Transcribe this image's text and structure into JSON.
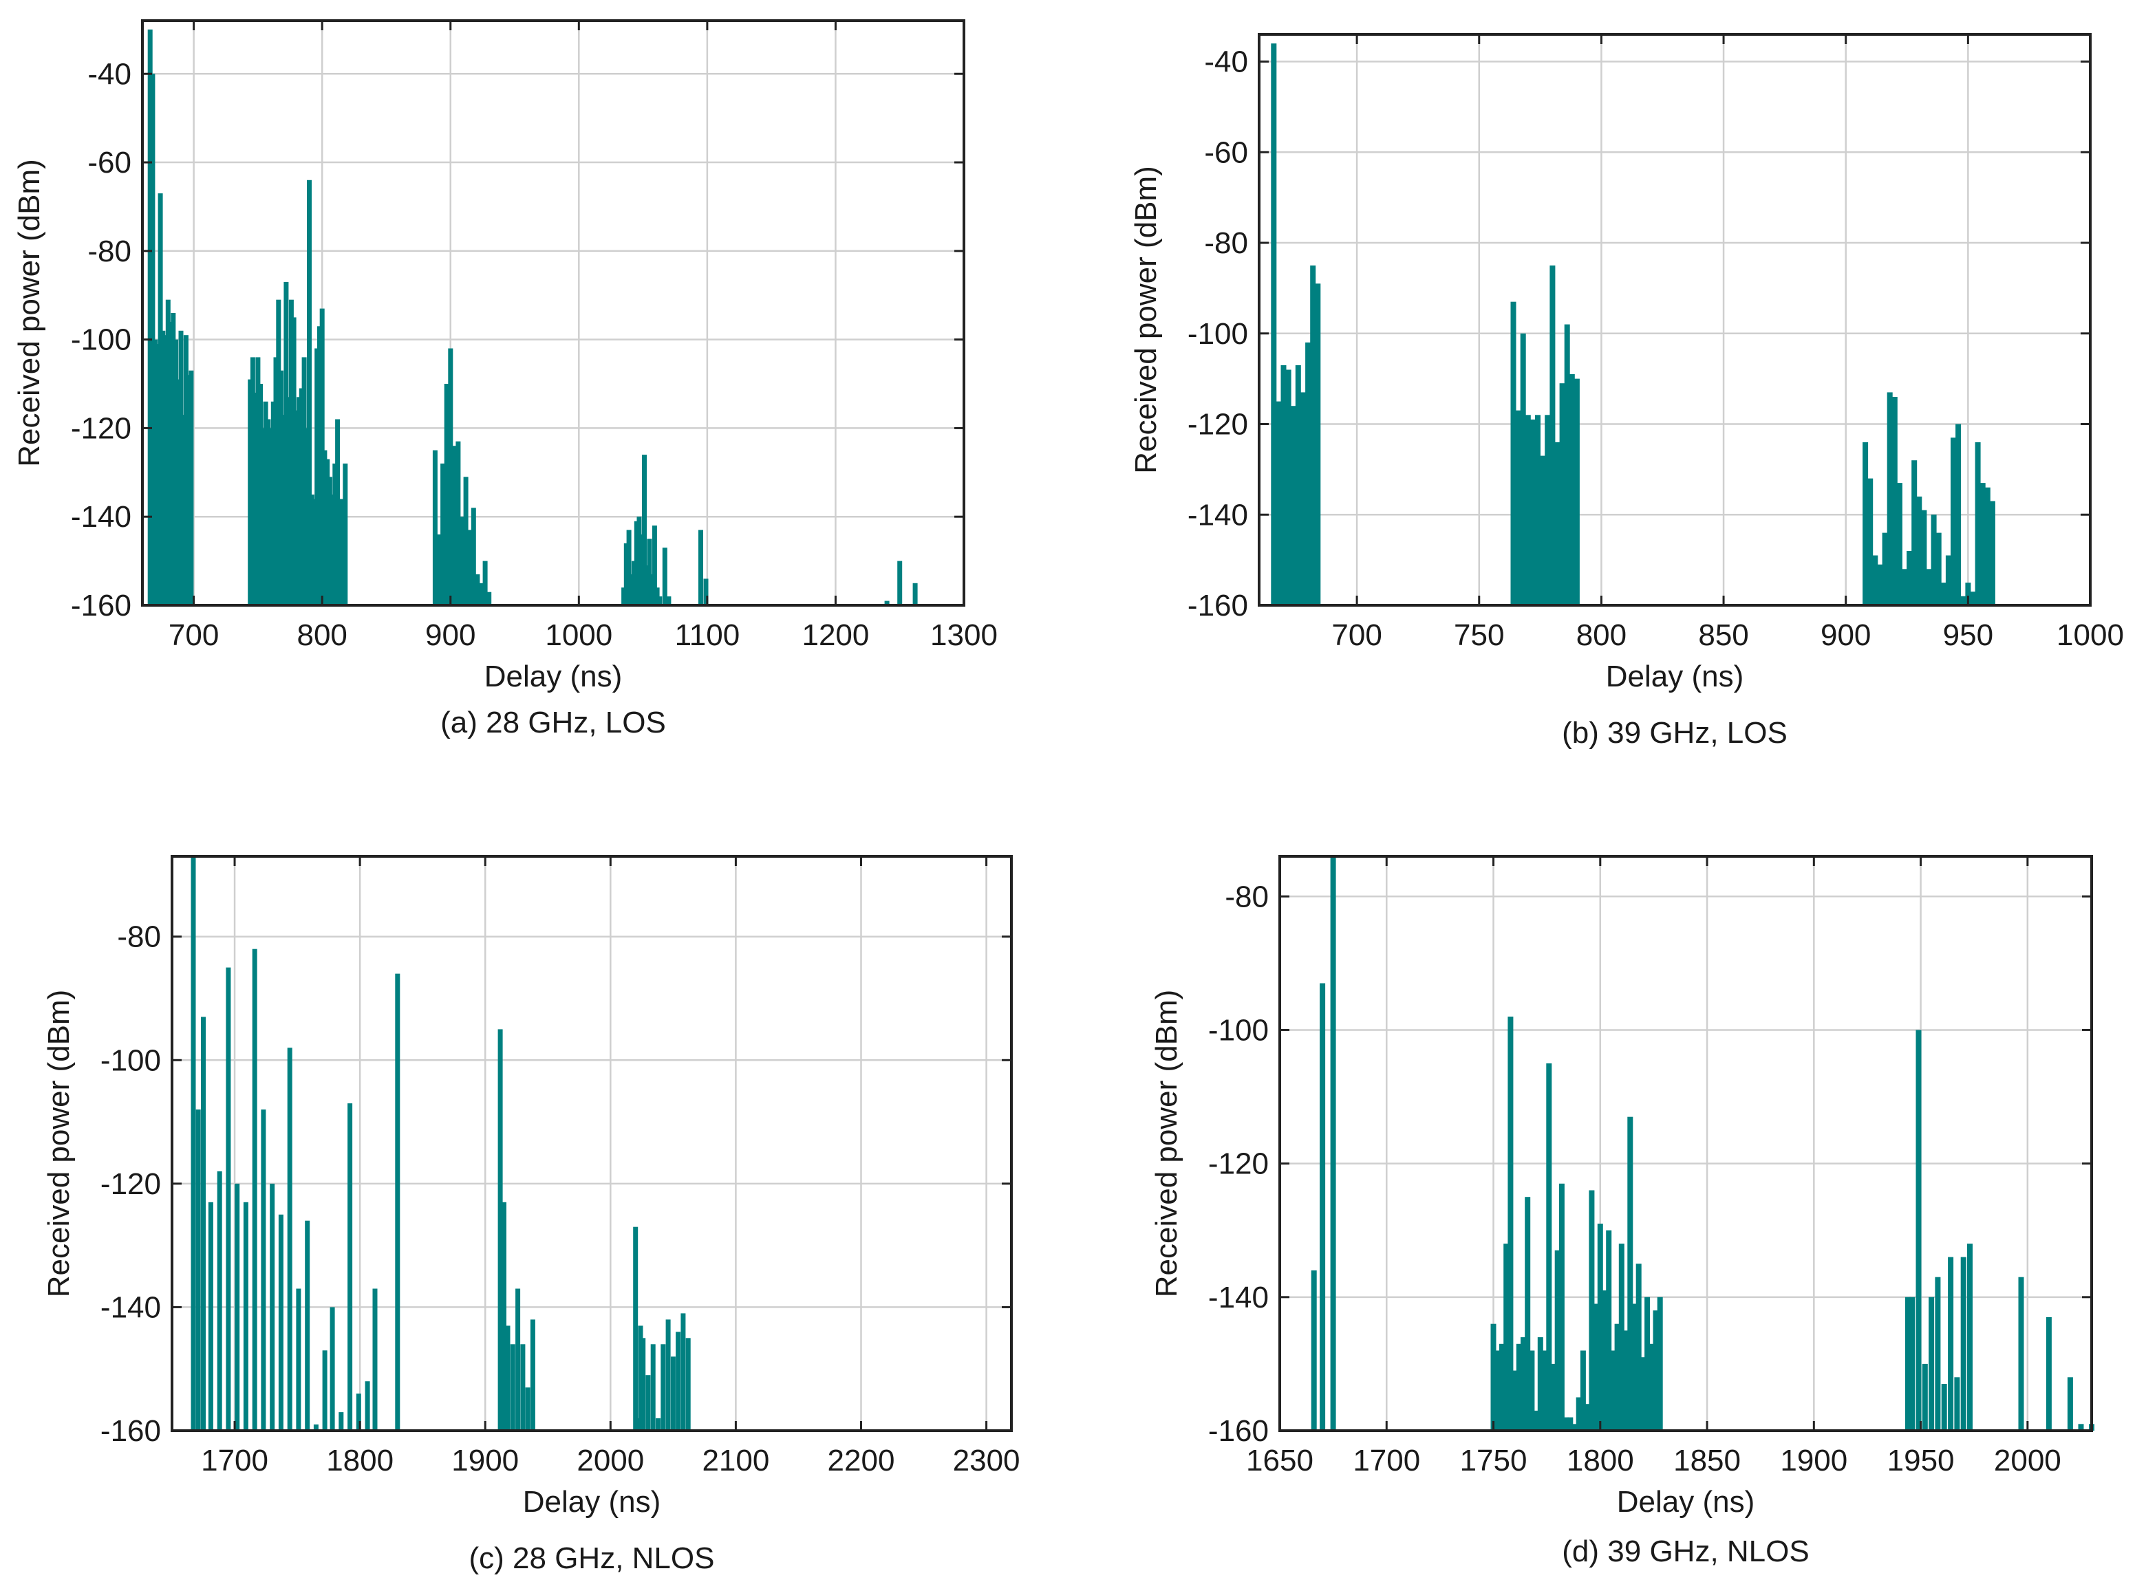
{
  "accent": "#008080",
  "chart_data": [
    {
      "type": "bar",
      "caption": "(a) 28 GHz, LOS",
      "xlabel": "Delay (ns)",
      "ylabel": "Received power (dBm)",
      "xlim": [
        660,
        1300
      ],
      "ylim": [
        -160,
        -28
      ],
      "xticks": [
        700,
        800,
        900,
        1000,
        1100,
        1200,
        1300
      ],
      "yticks": [
        -160,
        -140,
        -120,
        -100,
        -80,
        -60,
        -40
      ],
      "grid": true,
      "bars": [
        [
          666,
          -30
        ],
        [
          668,
          -40
        ],
        [
          670,
          -100
        ],
        [
          672,
          -101
        ],
        [
          674,
          -67
        ],
        [
          676,
          -98
        ],
        [
          678,
          -99
        ],
        [
          680,
          -91
        ],
        [
          682,
          -96
        ],
        [
          684,
          -94
        ],
        [
          686,
          -100
        ],
        [
          688,
          -109
        ],
        [
          690,
          -98
        ],
        [
          692,
          -117
        ],
        [
          694,
          -99
        ],
        [
          696,
          -108
        ],
        [
          698,
          -107
        ],
        [
          744,
          -109
        ],
        [
          746,
          -104
        ],
        [
          748,
          -112
        ],
        [
          750,
          -104
        ],
        [
          752,
          -110
        ],
        [
          754,
          -120
        ],
        [
          756,
          -114
        ],
        [
          758,
          -118
        ],
        [
          760,
          -120
        ],
        [
          762,
          -114
        ],
        [
          764,
          -104
        ],
        [
          766,
          -91
        ],
        [
          768,
          -107
        ],
        [
          770,
          -117
        ],
        [
          772,
          -87
        ],
        [
          774,
          -113
        ],
        [
          776,
          -91
        ],
        [
          778,
          -95
        ],
        [
          780,
          -116
        ],
        [
          782,
          -113
        ],
        [
          784,
          -111
        ],
        [
          786,
          -104
        ],
        [
          788,
          -120
        ],
        [
          790,
          -64
        ],
        [
          792,
          -135
        ],
        [
          794,
          -136
        ],
        [
          796,
          -102
        ],
        [
          798,
          -97
        ],
        [
          800,
          -93
        ],
        [
          802,
          -125
        ],
        [
          804,
          -127
        ],
        [
          806,
          -131
        ],
        [
          808,
          -135
        ],
        [
          810,
          -128
        ],
        [
          812,
          -118
        ],
        [
          814,
          -136
        ],
        [
          816,
          -136
        ],
        [
          818,
          -128
        ],
        [
          888,
          -125
        ],
        [
          891,
          -144
        ],
        [
          894,
          -128
        ],
        [
          897,
          -110
        ],
        [
          900,
          -102
        ],
        [
          903,
          -124
        ],
        [
          906,
          -123
        ],
        [
          909,
          -140
        ],
        [
          912,
          -131
        ],
        [
          915,
          -143
        ],
        [
          918,
          -138
        ],
        [
          921,
          -153
        ],
        [
          924,
          -155
        ],
        [
          927,
          -150
        ],
        [
          930,
          -157
        ],
        [
          1035,
          -156
        ],
        [
          1037,
          -146
        ],
        [
          1039,
          -143
        ],
        [
          1041,
          -153
        ],
        [
          1043,
          -150
        ],
        [
          1045,
          -141
        ],
        [
          1047,
          -140
        ],
        [
          1049,
          -144
        ],
        [
          1051,
          -126
        ],
        [
          1053,
          -151
        ],
        [
          1055,
          -145
        ],
        [
          1057,
          -153
        ],
        [
          1059,
          -142
        ],
        [
          1061,
          -156
        ],
        [
          1063,
          -158
        ],
        [
          1067,
          -147
        ],
        [
          1070,
          -158
        ],
        [
          1095,
          -143
        ],
        [
          1099,
          -154
        ],
        [
          1240,
          -159
        ],
        [
          1250,
          -150
        ],
        [
          1262,
          -155
        ]
      ]
    },
    {
      "type": "bar",
      "caption": "(b) 39 GHz, LOS",
      "xlabel": "Delay (ns)",
      "ylabel": "Received power (dBm)",
      "xlim": [
        660,
        1000
      ],
      "ylim": [
        -160,
        -34
      ],
      "xticks": [
        700,
        750,
        800,
        850,
        900,
        950,
        1000
      ],
      "yticks": [
        -160,
        -140,
        -120,
        -100,
        -80,
        -60,
        -40
      ],
      "grid": true,
      "bars": [
        [
          666,
          -36
        ],
        [
          668,
          -115
        ],
        [
          670,
          -107
        ],
        [
          672,
          -108
        ],
        [
          674,
          -116
        ],
        [
          676,
          -107
        ],
        [
          678,
          -113
        ],
        [
          680,
          -102
        ],
        [
          682,
          -85
        ],
        [
          684,
          -89
        ],
        [
          764,
          -93
        ],
        [
          766,
          -117
        ],
        [
          768,
          -100
        ],
        [
          770,
          -118
        ],
        [
          772,
          -119
        ],
        [
          774,
          -118
        ],
        [
          776,
          -127
        ],
        [
          778,
          -118
        ],
        [
          780,
          -85
        ],
        [
          782,
          -124
        ],
        [
          784,
          -111
        ],
        [
          786,
          -98
        ],
        [
          788,
          -109
        ],
        [
          790,
          -110
        ],
        [
          908,
          -124
        ],
        [
          910,
          -132
        ],
        [
          912,
          -149
        ],
        [
          914,
          -151
        ],
        [
          916,
          -144
        ],
        [
          918,
          -113
        ],
        [
          920,
          -114
        ],
        [
          922,
          -133
        ],
        [
          924,
          -152
        ],
        [
          926,
          -148
        ],
        [
          928,
          -128
        ],
        [
          930,
          -136
        ],
        [
          932,
          -139
        ],
        [
          934,
          -152
        ],
        [
          936,
          -140
        ],
        [
          938,
          -144
        ],
        [
          940,
          -155
        ],
        [
          942,
          -149
        ],
        [
          944,
          -123
        ],
        [
          946,
          -120
        ],
        [
          948,
          -158
        ],
        [
          950,
          -155
        ],
        [
          952,
          -157
        ],
        [
          954,
          -124
        ],
        [
          956,
          -133
        ],
        [
          958,
          -134
        ],
        [
          960,
          -137
        ]
      ]
    },
    {
      "type": "bar",
      "caption": "(c) 28 GHz, NLOS",
      "xlabel": "Delay (ns)",
      "ylabel": "Received power (dBm)",
      "xlim": [
        1650,
        2320
      ],
      "ylim": [
        -160,
        -67
      ],
      "xticks": [
        1700,
        1800,
        1900,
        2000,
        2100,
        2200,
        2300
      ],
      "yticks": [
        -160,
        -140,
        -120,
        -100,
        -80
      ],
      "grid": true,
      "bars": [
        [
          1667,
          -67
        ],
        [
          1671,
          -108
        ],
        [
          1675,
          -93
        ],
        [
          1681,
          -123
        ],
        [
          1688,
          -118
        ],
        [
          1695,
          -85
        ],
        [
          1702,
          -120
        ],
        [
          1709,
          -123
        ],
        [
          1716,
          -82
        ],
        [
          1723,
          -108
        ],
        [
          1730,
          -120
        ],
        [
          1737,
          -125
        ],
        [
          1744,
          -98
        ],
        [
          1751,
          -137
        ],
        [
          1758,
          -126
        ],
        [
          1765,
          -159
        ],
        [
          1772,
          -147
        ],
        [
          1778,
          -140
        ],
        [
          1785,
          -157
        ],
        [
          1792,
          -107
        ],
        [
          1799,
          -154
        ],
        [
          1806,
          -152
        ],
        [
          1812,
          -137
        ],
        [
          1830,
          -86
        ],
        [
          1912,
          -95
        ],
        [
          1915,
          -123
        ],
        [
          1918,
          -143
        ],
        [
          1922,
          -146
        ],
        [
          1926,
          -137
        ],
        [
          1930,
          -146
        ],
        [
          1934,
          -153
        ],
        [
          1938,
          -142
        ],
        [
          2020,
          -127
        ],
        [
          2022,
          -158
        ],
        [
          2024,
          -143
        ],
        [
          2026,
          -145
        ],
        [
          2030,
          -151
        ],
        [
          2034,
          -146
        ],
        [
          2038,
          -158
        ],
        [
          2042,
          -146
        ],
        [
          2046,
          -142
        ],
        [
          2050,
          -148
        ],
        [
          2054,
          -144
        ],
        [
          2058,
          -141
        ],
        [
          2062,
          -145
        ]
      ]
    },
    {
      "type": "bar",
      "caption": "(d) 39 GHz, NLOS",
      "xlabel": "Delay (ns)",
      "ylabel": "Received power (dBm)",
      "xlim": [
        1650,
        2030
      ],
      "ylim": [
        -160,
        -74
      ],
      "xticks": [
        1650,
        1700,
        1750,
        1800,
        1850,
        1900,
        1950,
        2000
      ],
      "yticks": [
        -160,
        -140,
        -120,
        -100,
        -80
      ],
      "grid": true,
      "bars": [
        [
          1666,
          -136
        ],
        [
          1670,
          -93
        ],
        [
          1675,
          -74
        ],
        [
          1750,
          -144
        ],
        [
          1752,
          -148
        ],
        [
          1754,
          -147
        ],
        [
          1756,
          -132
        ],
        [
          1758,
          -98
        ],
        [
          1760,
          -151
        ],
        [
          1762,
          -147
        ],
        [
          1764,
          -146
        ],
        [
          1766,
          -125
        ],
        [
          1768,
          -148
        ],
        [
          1770,
          -157
        ],
        [
          1772,
          -146
        ],
        [
          1774,
          -148
        ],
        [
          1776,
          -105
        ],
        [
          1778,
          -150
        ],
        [
          1780,
          -133
        ],
        [
          1782,
          -123
        ],
        [
          1784,
          -158
        ],
        [
          1786,
          -158
        ],
        [
          1788,
          -159
        ],
        [
          1790,
          -155
        ],
        [
          1792,
          -148
        ],
        [
          1794,
          -156
        ],
        [
          1796,
          -124
        ],
        [
          1798,
          -141
        ],
        [
          1800,
          -129
        ],
        [
          1802,
          -139
        ],
        [
          1804,
          -130
        ],
        [
          1806,
          -148
        ],
        [
          1808,
          -144
        ],
        [
          1810,
          -132
        ],
        [
          1812,
          -145
        ],
        [
          1814,
          -113
        ],
        [
          1816,
          -141
        ],
        [
          1818,
          -135
        ],
        [
          1820,
          -149
        ],
        [
          1822,
          -140
        ],
        [
          1824,
          -147
        ],
        [
          1826,
          -142
        ],
        [
          1828,
          -140
        ],
        [
          1944,
          -140
        ],
        [
          1946,
          -140
        ],
        [
          1949,
          -100
        ],
        [
          1952,
          -150
        ],
        [
          1955,
          -140
        ],
        [
          1958,
          -137
        ],
        [
          1961,
          -153
        ],
        [
          1964,
          -134
        ],
        [
          1967,
          -152
        ],
        [
          1970,
          -134
        ],
        [
          1973,
          -132
        ],
        [
          1997,
          -137
        ],
        [
          2010,
          -143
        ],
        [
          2020,
          -152
        ],
        [
          2025,
          -159
        ],
        [
          2030,
          -159
        ]
      ]
    }
  ]
}
